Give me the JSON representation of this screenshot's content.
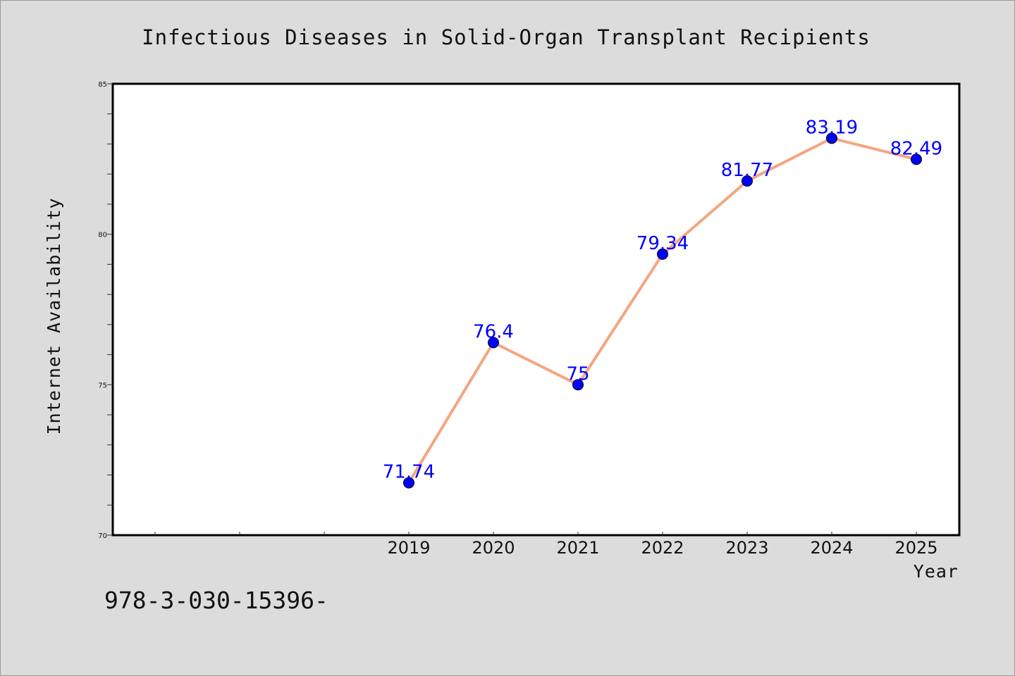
{
  "chart_data": {
    "type": "line",
    "title": "Infectious Diseases in Solid-Organ Transplant Recipients",
    "xlabel": "Year",
    "ylabel": "Internet Availability",
    "categories": [
      "2019",
      "2020",
      "2021",
      "2022",
      "2023",
      "2024",
      "2025"
    ],
    "series": [
      {
        "values": [
          71.74,
          76.4,
          75,
          79.34,
          81.77,
          83.19,
          82.49
        ],
        "labels": [
          "71.74",
          "76.4",
          "75",
          "79.34",
          "81.77",
          "83.19",
          "82.49"
        ],
        "line_color": "#f4a582",
        "marker_color": "#0000ff"
      }
    ],
    "ylim": [
      70,
      85
    ],
    "yticks": [
      "70",
      "75",
      "80",
      "85"
    ],
    "x_slots": 10,
    "grid": false,
    "legend": "none"
  },
  "footer": {
    "text": "978-3-030-15396-"
  }
}
